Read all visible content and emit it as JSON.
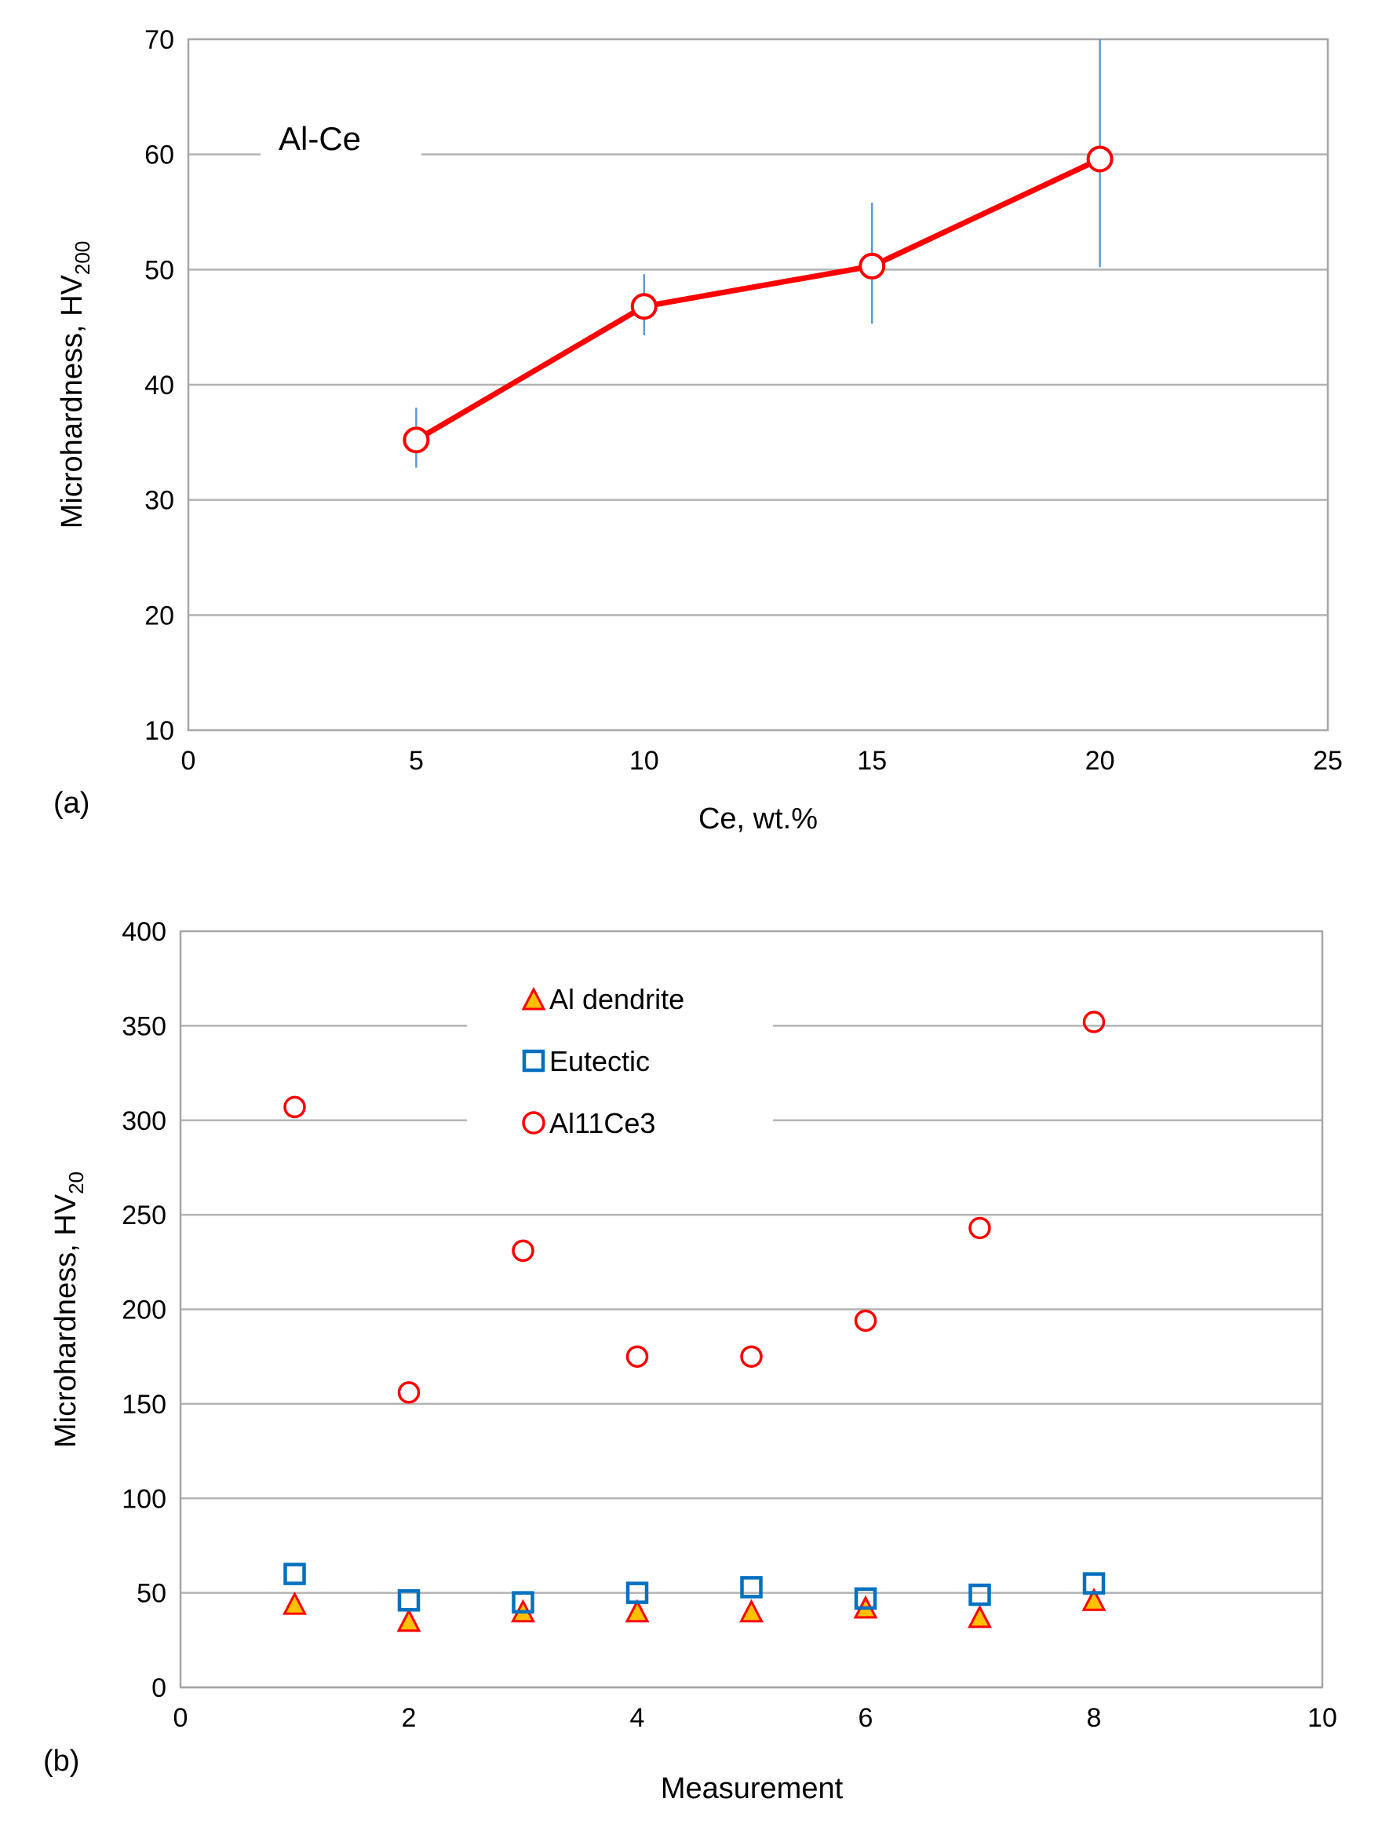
{
  "chart_data": [
    {
      "panel": "(a)",
      "type": "line",
      "annotation": "Al-Ce",
      "xlabel": "Ce, wt.%",
      "ylabel_main": "Microhardness, HV",
      "ylabel_sub": "200",
      "xlim": [
        0,
        25
      ],
      "ylim": [
        10,
        70
      ],
      "xticks": [
        "0",
        "5",
        "10",
        "15",
        "20",
        "25"
      ],
      "yticks": [
        "10",
        "20",
        "30",
        "40",
        "50",
        "60",
        "70"
      ],
      "grid": "horizontal",
      "colors": {
        "line": "#ff0000",
        "error_bar": "#5b9bd5",
        "grid": "#b3b3b3"
      },
      "series": [
        {
          "name": "Al-Ce",
          "x": [
            5,
            10,
            15,
            20
          ],
          "y": [
            35.2,
            46.8,
            50.3,
            59.6
          ],
          "error_low": [
            32.8,
            44.3,
            45.3,
            50.2
          ],
          "error_high": [
            38.0,
            49.6,
            55.8,
            70.0
          ]
        }
      ]
    },
    {
      "panel": "(b)",
      "type": "scatter",
      "xlabel": "Measurement",
      "ylabel_main": "Microhardness, HV",
      "ylabel_sub": "20",
      "xlim": [
        0,
        10
      ],
      "ylim": [
        0,
        400
      ],
      "xticks": [
        "0",
        "2",
        "4",
        "6",
        "8",
        "10"
      ],
      "yticks": [
        "0",
        "50",
        "100",
        "150",
        "200",
        "250",
        "300",
        "350",
        "400"
      ],
      "grid": "horizontal",
      "legend": "top-center",
      "colors": {
        "triangle_fill": "#ffc000",
        "triangle_stroke": "#ff0000",
        "square": "#0070c0",
        "circle": "#ff0000",
        "grid": "#b3b3b3"
      },
      "series": [
        {
          "name": "Al dendrite",
          "marker": "triangle",
          "x": [
            1,
            2,
            3,
            4,
            5,
            6,
            7,
            8
          ],
          "y": [
            44,
            35,
            40,
            40,
            40,
            42,
            37,
            46
          ]
        },
        {
          "name": "Eutectic",
          "marker": "square",
          "x": [
            1,
            2,
            3,
            4,
            5,
            6,
            7,
            8
          ],
          "y": [
            60,
            46,
            45,
            50,
            53,
            47,
            49,
            55
          ]
        },
        {
          "name": "Al11Ce3",
          "marker": "circle",
          "x": [
            1,
            2,
            3,
            4,
            5,
            6,
            7,
            8
          ],
          "y": [
            307,
            156,
            231,
            175,
            175,
            194,
            243,
            352
          ]
        }
      ]
    }
  ]
}
